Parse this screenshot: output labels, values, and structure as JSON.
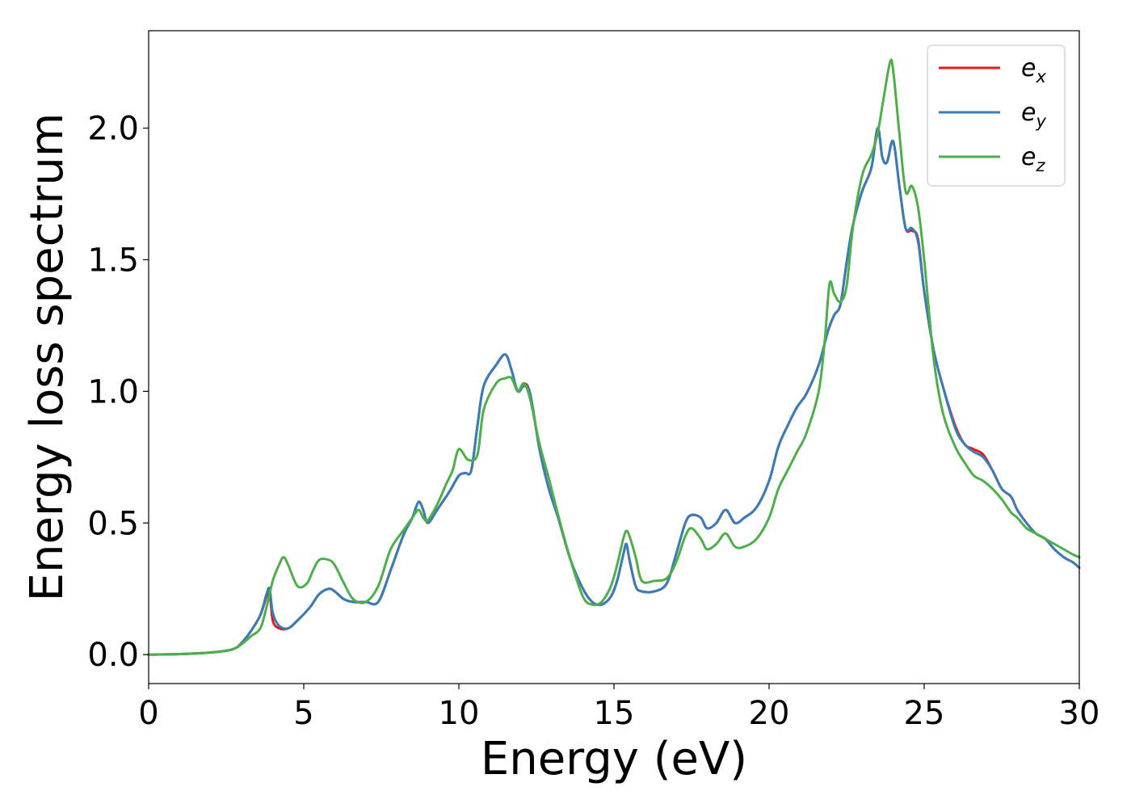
{
  "chart_data": {
    "type": "line",
    "title": "",
    "xlabel": "Energy (eV)",
    "ylabel": "Energy loss spectrum",
    "xlim": [
      0,
      30
    ],
    "ylim": [
      -0.11,
      2.37
    ],
    "xticks": [
      0,
      5,
      10,
      15,
      20,
      25,
      30
    ],
    "xtick_labels": [
      "0",
      "5",
      "10",
      "15",
      "20",
      "25",
      "30"
    ],
    "yticks": [
      0.0,
      0.5,
      1.0,
      1.5,
      2.0
    ],
    "ytick_labels": [
      "0.0",
      "0.5",
      "1.0",
      "1.5",
      "2.0"
    ],
    "grid": false,
    "legend_position": "top-right",
    "series": [
      {
        "name": "e_x",
        "legend_base": "e",
        "legend_sub": "x",
        "color": "#e41a1c",
        "x": [
          0,
          1,
          2,
          2.7,
          3.0,
          3.3,
          3.6,
          3.8,
          3.9,
          4.0,
          4.2,
          4.5,
          4.8,
          5.2,
          5.5,
          5.8,
          6.0,
          6.3,
          6.6,
          7.0,
          7.4,
          7.8,
          8.2,
          8.5,
          8.7,
          8.85,
          9.0,
          9.3,
          9.7,
          10.0,
          10.2,
          10.4,
          10.6,
          10.8,
          11.2,
          11.5,
          11.7,
          11.9,
          12.1,
          12.3,
          12.6,
          12.9,
          13.2,
          13.6,
          14.0,
          14.3,
          14.6,
          14.9,
          15.1,
          15.3,
          15.4,
          15.5,
          15.7,
          15.9,
          16.3,
          16.7,
          17.0,
          17.3,
          17.5,
          17.8,
          18.0,
          18.3,
          18.6,
          18.9,
          19.2,
          19.6,
          20.0,
          20.3,
          20.6,
          20.9,
          21.2,
          21.6,
          21.9,
          22.1,
          22.3,
          22.5,
          22.7,
          23.0,
          23.3,
          23.5,
          23.65,
          23.8,
          24.0,
          24.2,
          24.4,
          24.6,
          24.8,
          25.0,
          25.3,
          25.6,
          26.0,
          26.3,
          26.6,
          26.9,
          27.2,
          27.5,
          27.8,
          28.0,
          28.3,
          28.6,
          28.9,
          29.2,
          29.5,
          29.8,
          30.0
        ],
        "y": [
          0.0,
          0.002,
          0.008,
          0.02,
          0.045,
          0.09,
          0.15,
          0.22,
          0.24,
          0.13,
          0.1,
          0.1,
          0.13,
          0.18,
          0.23,
          0.25,
          0.24,
          0.21,
          0.2,
          0.2,
          0.2,
          0.32,
          0.45,
          0.52,
          0.58,
          0.55,
          0.5,
          0.55,
          0.62,
          0.68,
          0.69,
          0.7,
          0.87,
          1.02,
          1.1,
          1.14,
          1.08,
          1.0,
          1.03,
          0.99,
          0.78,
          0.63,
          0.52,
          0.36,
          0.25,
          0.2,
          0.19,
          0.22,
          0.28,
          0.38,
          0.42,
          0.36,
          0.26,
          0.24,
          0.24,
          0.27,
          0.38,
          0.5,
          0.53,
          0.52,
          0.48,
          0.5,
          0.55,
          0.5,
          0.52,
          0.56,
          0.66,
          0.79,
          0.87,
          0.94,
          0.99,
          1.1,
          1.23,
          1.29,
          1.33,
          1.49,
          1.63,
          1.76,
          1.85,
          2.0,
          1.89,
          1.87,
          1.95,
          1.78,
          1.62,
          1.61,
          1.58,
          1.38,
          1.16,
          1.02,
          0.87,
          0.8,
          0.78,
          0.76,
          0.7,
          0.63,
          0.6,
          0.55,
          0.5,
          0.46,
          0.44,
          0.4,
          0.37,
          0.35,
          0.33
        ]
      },
      {
        "name": "e_y",
        "legend_base": "e",
        "legend_sub": "y",
        "color": "#377eb8",
        "x": [
          0,
          1,
          2,
          2.7,
          3.0,
          3.3,
          3.6,
          3.8,
          3.9,
          4.0,
          4.2,
          4.5,
          4.8,
          5.2,
          5.5,
          5.8,
          6.0,
          6.3,
          6.6,
          7.0,
          7.4,
          7.8,
          8.2,
          8.5,
          8.7,
          8.85,
          9.0,
          9.3,
          9.7,
          10.0,
          10.2,
          10.4,
          10.6,
          10.8,
          11.2,
          11.5,
          11.7,
          11.9,
          12.1,
          12.3,
          12.6,
          12.9,
          13.2,
          13.6,
          14.0,
          14.3,
          14.6,
          14.9,
          15.1,
          15.3,
          15.4,
          15.5,
          15.7,
          15.9,
          16.3,
          16.7,
          17.0,
          17.3,
          17.5,
          17.8,
          18.0,
          18.3,
          18.6,
          18.9,
          19.2,
          19.6,
          20.0,
          20.3,
          20.6,
          20.9,
          21.2,
          21.6,
          21.9,
          22.1,
          22.3,
          22.5,
          22.7,
          23.0,
          23.3,
          23.5,
          23.65,
          23.8,
          24.0,
          24.2,
          24.4,
          24.6,
          24.8,
          25.0,
          25.3,
          25.6,
          26.0,
          26.3,
          26.6,
          26.9,
          27.2,
          27.5,
          27.8,
          28.0,
          28.3,
          28.6,
          28.9,
          29.2,
          29.5,
          29.8,
          30.0
        ],
        "y": [
          0.0,
          0.002,
          0.008,
          0.02,
          0.045,
          0.09,
          0.15,
          0.23,
          0.25,
          0.16,
          0.11,
          0.1,
          0.13,
          0.18,
          0.23,
          0.25,
          0.24,
          0.21,
          0.2,
          0.2,
          0.2,
          0.32,
          0.45,
          0.52,
          0.58,
          0.55,
          0.5,
          0.55,
          0.62,
          0.68,
          0.69,
          0.7,
          0.87,
          1.02,
          1.1,
          1.14,
          1.08,
          1.0,
          1.02,
          0.99,
          0.78,
          0.63,
          0.52,
          0.36,
          0.25,
          0.2,
          0.19,
          0.22,
          0.28,
          0.38,
          0.42,
          0.36,
          0.26,
          0.24,
          0.24,
          0.27,
          0.38,
          0.5,
          0.53,
          0.52,
          0.48,
          0.5,
          0.55,
          0.5,
          0.52,
          0.56,
          0.66,
          0.79,
          0.87,
          0.94,
          0.99,
          1.1,
          1.23,
          1.29,
          1.33,
          1.49,
          1.63,
          1.76,
          1.85,
          2.0,
          1.89,
          1.87,
          1.95,
          1.78,
          1.62,
          1.62,
          1.57,
          1.38,
          1.16,
          1.02,
          0.86,
          0.8,
          0.77,
          0.75,
          0.7,
          0.63,
          0.6,
          0.55,
          0.5,
          0.46,
          0.44,
          0.4,
          0.37,
          0.35,
          0.33
        ]
      },
      {
        "name": "e_z",
        "legend_base": "e",
        "legend_sub": "z",
        "color": "#4daf4a",
        "x": [
          0,
          1,
          2,
          2.7,
          3.0,
          3.3,
          3.6,
          3.8,
          4.0,
          4.2,
          4.35,
          4.5,
          4.8,
          5.1,
          5.3,
          5.5,
          5.8,
          6.0,
          6.3,
          6.6,
          7.0,
          7.4,
          7.8,
          8.2,
          8.5,
          8.7,
          8.85,
          9.0,
          9.3,
          9.6,
          9.8,
          10.0,
          10.3,
          10.6,
          10.8,
          11.2,
          11.5,
          11.7,
          11.9,
          12.1,
          12.3,
          12.6,
          12.9,
          13.2,
          13.6,
          14.0,
          14.3,
          14.6,
          14.9,
          15.1,
          15.3,
          15.4,
          15.5,
          15.7,
          15.9,
          16.3,
          16.7,
          17.0,
          17.3,
          17.5,
          17.8,
          18.0,
          18.3,
          18.6,
          18.9,
          19.2,
          19.6,
          20.0,
          20.3,
          20.6,
          20.9,
          21.2,
          21.6,
          21.8,
          21.95,
          22.1,
          22.3,
          22.5,
          22.7,
          23.0,
          23.3,
          23.5,
          23.7,
          23.9,
          24.0,
          24.2,
          24.4,
          24.6,
          24.8,
          25.0,
          25.3,
          25.6,
          26.0,
          26.3,
          26.6,
          26.9,
          27.2,
          27.5,
          27.8,
          28.0,
          28.3,
          28.6,
          28.9,
          29.2,
          29.5,
          29.8,
          30.0
        ],
        "y": [
          0.0,
          0.002,
          0.008,
          0.02,
          0.04,
          0.07,
          0.1,
          0.18,
          0.28,
          0.34,
          0.37,
          0.34,
          0.26,
          0.27,
          0.32,
          0.36,
          0.36,
          0.34,
          0.27,
          0.21,
          0.2,
          0.26,
          0.4,
          0.47,
          0.52,
          0.55,
          0.52,
          0.51,
          0.57,
          0.65,
          0.7,
          0.78,
          0.74,
          0.76,
          0.93,
          1.03,
          1.05,
          1.05,
          1.0,
          1.03,
          0.97,
          0.8,
          0.67,
          0.53,
          0.36,
          0.22,
          0.19,
          0.2,
          0.26,
          0.34,
          0.44,
          0.47,
          0.45,
          0.37,
          0.28,
          0.28,
          0.29,
          0.35,
          0.45,
          0.48,
          0.44,
          0.4,
          0.42,
          0.46,
          0.41,
          0.41,
          0.44,
          0.52,
          0.63,
          0.7,
          0.77,
          0.84,
          1.0,
          1.2,
          1.41,
          1.37,
          1.34,
          1.4,
          1.62,
          1.82,
          1.9,
          1.98,
          2.12,
          2.25,
          2.22,
          1.98,
          1.76,
          1.78,
          1.7,
          1.5,
          1.13,
          0.92,
          0.79,
          0.73,
          0.68,
          0.66,
          0.63,
          0.59,
          0.54,
          0.52,
          0.48,
          0.46,
          0.44,
          0.42,
          0.4,
          0.38,
          0.37
        ]
      }
    ]
  }
}
